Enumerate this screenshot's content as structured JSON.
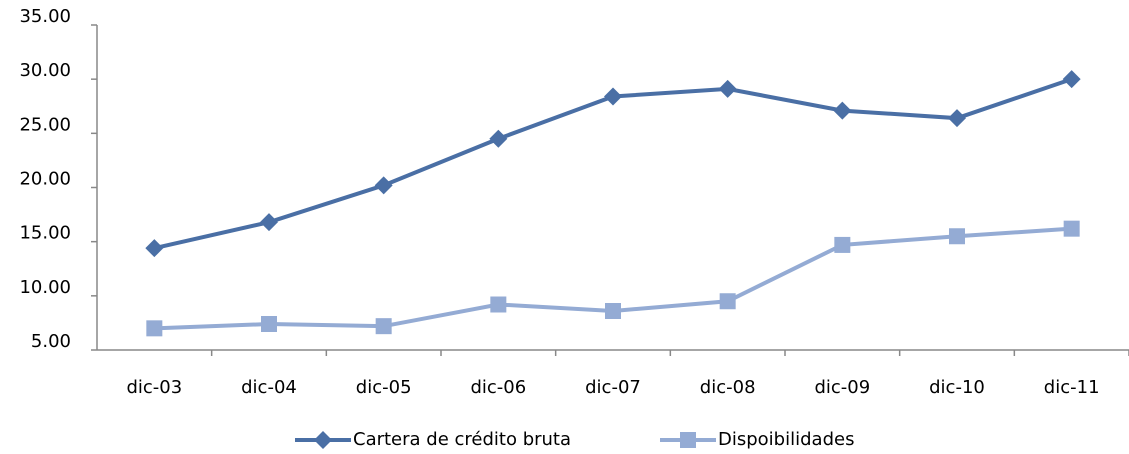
{
  "chart_data": {
    "type": "line",
    "categories": [
      "dic-03",
      "dic-04",
      "dic-05",
      "dic-06",
      "dic-07",
      "dic-08",
      "dic-09",
      "dic-10",
      "dic-11"
    ],
    "series": [
      {
        "name": "Cartera de crédito bruta",
        "color": "#4a6fa5",
        "marker": "diamond",
        "values": [
          14.4,
          16.8,
          20.2,
          24.5,
          28.4,
          29.1,
          27.1,
          26.4,
          30.0
        ]
      },
      {
        "name": "Dispoibilidades",
        "color": "#94abd4",
        "marker": "square",
        "values": [
          7.0,
          7.4,
          7.2,
          9.2,
          8.6,
          9.5,
          14.7,
          15.5,
          16.2
        ]
      }
    ],
    "ylim": [
      5,
      35
    ],
    "yticks": [
      {
        "value": 5,
        "label": "5.00"
      },
      {
        "value": 10,
        "label": "10.00"
      },
      {
        "value": 15,
        "label": "15.00"
      },
      {
        "value": 20,
        "label": "20.00"
      },
      {
        "value": 25,
        "label": "25.00"
      },
      {
        "value": 30,
        "label": "30.00"
      },
      {
        "value": 35,
        "label": "35.00"
      }
    ],
    "grid": false,
    "legend": "bottom"
  }
}
